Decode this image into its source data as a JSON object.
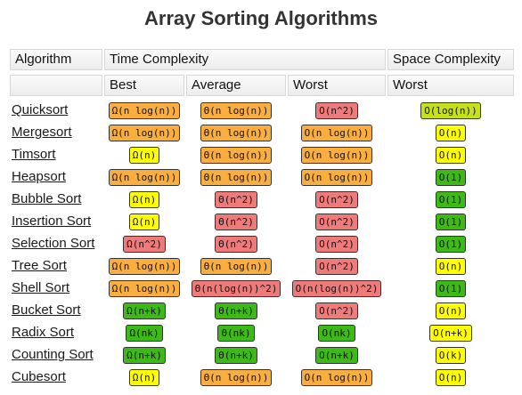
{
  "title": "Array Sorting Algorithms",
  "header": {
    "algorithm": "Algorithm",
    "time_complexity": "Time Complexity",
    "space_complexity": "Space Complexity",
    "best": "Best",
    "average": "Average",
    "worst": "Worst",
    "space_worst": "Worst"
  },
  "colors": {
    "red": "#ef7a7a",
    "orange": "#fbae40",
    "yellow": "#ffff00",
    "lime": "#c7e01c",
    "green": "#3cbb16"
  },
  "rows": [
    {
      "name": "Quicksort",
      "best": {
        "text": "Ω(n log(n))",
        "color": "orange"
      },
      "average": {
        "text": "Θ(n log(n))",
        "color": "orange"
      },
      "worst": {
        "text": "O(n^2)",
        "color": "red"
      },
      "space": {
        "text": "O(log(n))",
        "color": "lime"
      }
    },
    {
      "name": "Mergesort",
      "best": {
        "text": "Ω(n log(n))",
        "color": "orange"
      },
      "average": {
        "text": "Θ(n log(n))",
        "color": "orange"
      },
      "worst": {
        "text": "O(n log(n))",
        "color": "orange"
      },
      "space": {
        "text": "O(n)",
        "color": "yellow"
      }
    },
    {
      "name": "Timsort",
      "best": {
        "text": "Ω(n)",
        "color": "yellow"
      },
      "average": {
        "text": "Θ(n log(n))",
        "color": "orange"
      },
      "worst": {
        "text": "O(n log(n))",
        "color": "orange"
      },
      "space": {
        "text": "O(n)",
        "color": "yellow"
      }
    },
    {
      "name": "Heapsort",
      "best": {
        "text": "Ω(n log(n))",
        "color": "orange"
      },
      "average": {
        "text": "Θ(n log(n))",
        "color": "orange"
      },
      "worst": {
        "text": "O(n log(n))",
        "color": "orange"
      },
      "space": {
        "text": "O(1)",
        "color": "green"
      }
    },
    {
      "name": "Bubble Sort",
      "best": {
        "text": "Ω(n)",
        "color": "yellow"
      },
      "average": {
        "text": "Θ(n^2)",
        "color": "red"
      },
      "worst": {
        "text": "O(n^2)",
        "color": "red"
      },
      "space": {
        "text": "O(1)",
        "color": "green"
      }
    },
    {
      "name": "Insertion Sort",
      "best": {
        "text": "Ω(n)",
        "color": "yellow"
      },
      "average": {
        "text": "Θ(n^2)",
        "color": "red"
      },
      "worst": {
        "text": "O(n^2)",
        "color": "red"
      },
      "space": {
        "text": "O(1)",
        "color": "green"
      }
    },
    {
      "name": "Selection Sort",
      "best": {
        "text": "Ω(n^2)",
        "color": "red"
      },
      "average": {
        "text": "Θ(n^2)",
        "color": "red"
      },
      "worst": {
        "text": "O(n^2)",
        "color": "red"
      },
      "space": {
        "text": "O(1)",
        "color": "green"
      }
    },
    {
      "name": "Tree Sort",
      "best": {
        "text": "Ω(n log(n))",
        "color": "orange"
      },
      "average": {
        "text": "Θ(n log(n))",
        "color": "orange"
      },
      "worst": {
        "text": "O(n^2)",
        "color": "red"
      },
      "space": {
        "text": "O(n)",
        "color": "yellow"
      }
    },
    {
      "name": "Shell Sort",
      "best": {
        "text": "Ω(n log(n))",
        "color": "orange"
      },
      "average": {
        "text": "Θ(n(log(n))^2)",
        "color": "red"
      },
      "worst": {
        "text": "O(n(log(n))^2)",
        "color": "red"
      },
      "space": {
        "text": "O(1)",
        "color": "green"
      }
    },
    {
      "name": "Bucket Sort",
      "best": {
        "text": "Ω(n+k)",
        "color": "green"
      },
      "average": {
        "text": "Θ(n+k)",
        "color": "green"
      },
      "worst": {
        "text": "O(n^2)",
        "color": "red"
      },
      "space": {
        "text": "O(n)",
        "color": "yellow"
      }
    },
    {
      "name": "Radix Sort",
      "best": {
        "text": "Ω(nk)",
        "color": "green"
      },
      "average": {
        "text": "Θ(nk)",
        "color": "green"
      },
      "worst": {
        "text": "O(nk)",
        "color": "green"
      },
      "space": {
        "text": "O(n+k)",
        "color": "yellow"
      }
    },
    {
      "name": "Counting Sort",
      "best": {
        "text": "Ω(n+k)",
        "color": "green"
      },
      "average": {
        "text": "Θ(n+k)",
        "color": "green"
      },
      "worst": {
        "text": "O(n+k)",
        "color": "green"
      },
      "space": {
        "text": "O(k)",
        "color": "yellow"
      }
    },
    {
      "name": "Cubesort",
      "best": {
        "text": "Ω(n)",
        "color": "yellow"
      },
      "average": {
        "text": "Θ(n log(n))",
        "color": "orange"
      },
      "worst": {
        "text": "O(n log(n))",
        "color": "orange"
      },
      "space": {
        "text": "O(n)",
        "color": "yellow"
      }
    }
  ]
}
